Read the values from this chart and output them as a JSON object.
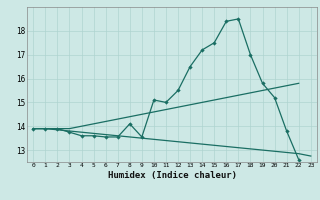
{
  "title": "",
  "xlabel": "Humidex (Indice chaleur)",
  "ylabel": "",
  "background_color": "#cde8e5",
  "grid_color": "#afd4d0",
  "line_color": "#1a6e63",
  "x_values": [
    0,
    1,
    2,
    3,
    4,
    5,
    6,
    7,
    8,
    9,
    10,
    11,
    12,
    13,
    14,
    15,
    16,
    17,
    18,
    19,
    20,
    21,
    22,
    23
  ],
  "curve1": [
    13.9,
    13.9,
    13.9,
    13.75,
    13.6,
    13.6,
    13.55,
    13.55,
    14.1,
    13.55,
    15.1,
    15.0,
    15.5,
    16.5,
    17.2,
    17.5,
    18.4,
    18.5,
    17.0,
    15.8,
    15.2,
    13.8,
    12.6,
    null
  ],
  "curve2": [
    13.9,
    13.9,
    13.85,
    13.8,
    13.75,
    13.7,
    13.65,
    13.6,
    13.55,
    13.5,
    13.45,
    13.4,
    13.35,
    13.3,
    13.25,
    13.2,
    13.15,
    13.1,
    13.05,
    13.0,
    12.95,
    12.9,
    12.85,
    12.75
  ],
  "curve3": [
    13.9,
    13.9,
    13.9,
    13.9,
    14.0,
    14.1,
    14.2,
    14.3,
    14.4,
    14.5,
    14.6,
    14.7,
    14.8,
    14.9,
    15.0,
    15.1,
    15.2,
    15.3,
    15.4,
    15.5,
    15.6,
    15.7,
    15.8,
    null
  ],
  "ylim": [
    12.5,
    19.0
  ],
  "yticks": [
    13,
    14,
    15,
    16,
    17,
    18
  ],
  "xticks": [
    0,
    1,
    2,
    3,
    4,
    5,
    6,
    7,
    8,
    9,
    10,
    11,
    12,
    13,
    14,
    15,
    16,
    17,
    18,
    19,
    20,
    21,
    22,
    23
  ]
}
